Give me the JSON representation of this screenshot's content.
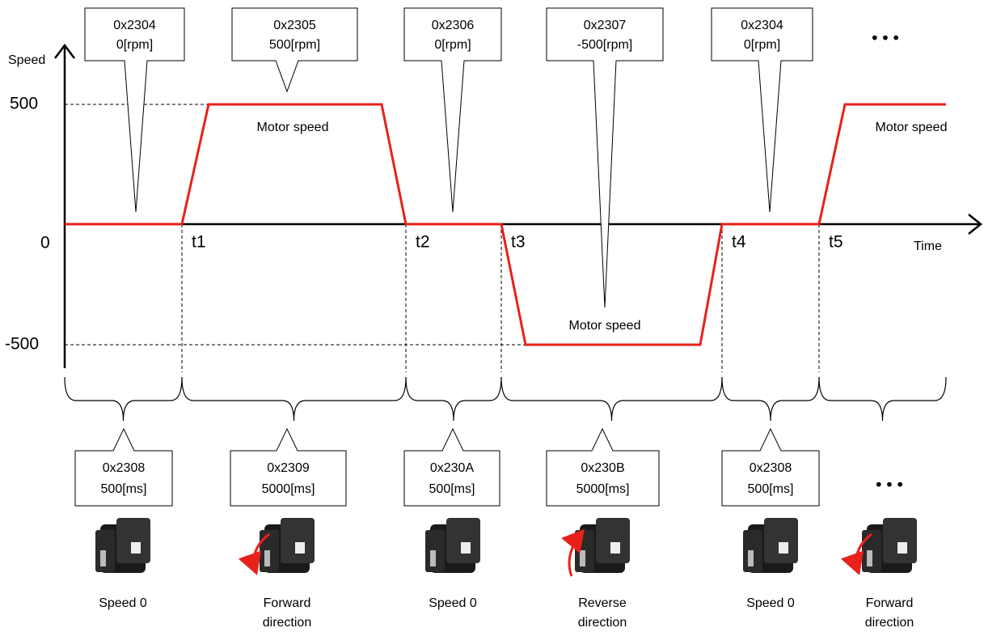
{
  "axis": {
    "y_label": "Speed",
    "x_label": "Time",
    "y_max": "500",
    "y_min": "-500",
    "origin": "0",
    "ticks": [
      "t1",
      "t2",
      "t3",
      "t4",
      "t5"
    ]
  },
  "speed_callouts": [
    {
      "object": "0x2304",
      "value": "0[rpm]"
    },
    {
      "object": "0x2305",
      "value": "500[rpm]"
    },
    {
      "object": "0x2306",
      "value": "0[rpm]"
    },
    {
      "object": "0x2307",
      "value": "-500[rpm]"
    },
    {
      "object": "0x2304",
      "value": "0[rpm]"
    }
  ],
  "speed_more": "• • •",
  "motor_speed_labels": [
    "Motor speed",
    "Motor speed",
    "Motor speed"
  ],
  "time_callouts": [
    {
      "object": "0x2308",
      "value": "500[ms]"
    },
    {
      "object": "0x2309",
      "value": "5000[ms]"
    },
    {
      "object": "0x230A",
      "value": "500[ms]"
    },
    {
      "object": "0x230B",
      "value": "5000[ms]"
    },
    {
      "object": "0x2308",
      "value": "500[ms]"
    }
  ],
  "time_more": "• • •",
  "motors": [
    {
      "caption": [
        "Speed 0"
      ]
    },
    {
      "caption": [
        "Forward",
        "direction"
      ]
    },
    {
      "caption": [
        "Speed 0"
      ]
    },
    {
      "caption": [
        "Reverse",
        "direction"
      ]
    },
    {
      "caption": [
        "Speed 0"
      ]
    },
    {
      "caption": [
        "Forward",
        "direction"
      ]
    }
  ]
}
